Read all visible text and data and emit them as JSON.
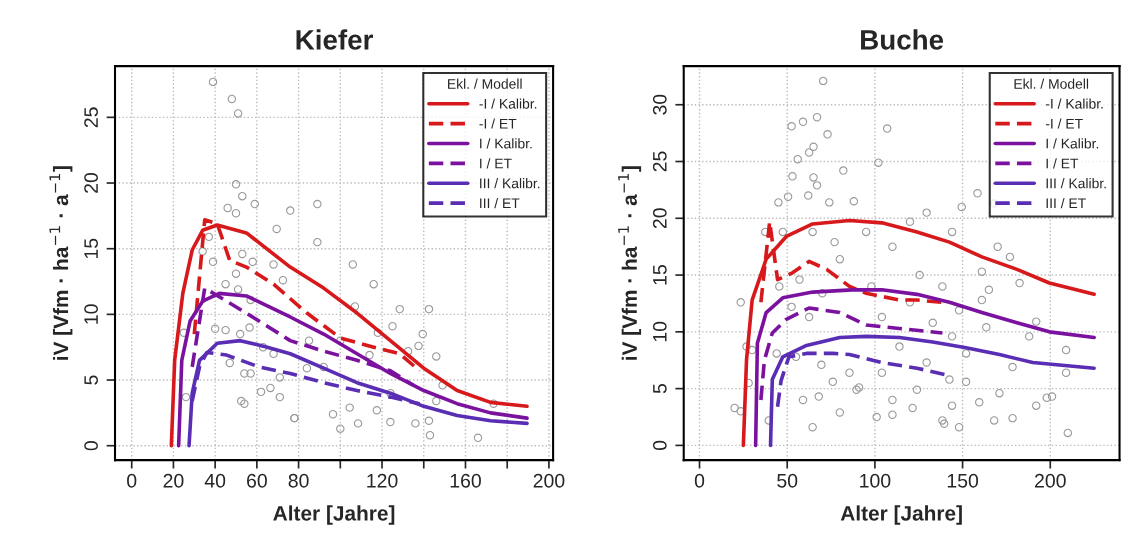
{
  "chart_data": [
    {
      "type": "line",
      "title": "Kiefer",
      "xlabel": "Alter [Jahre]",
      "ylabel": "iV [Vfm · ha$^{−1}$ · a$^{−1}$]",
      "legend_title": "Ekl. / Modell",
      "legend": "top right",
      "grid": true,
      "xlim": [
        -8,
        202
      ],
      "ylim": [
        -1.1,
        28.9
      ],
      "xticks": [
        0,
        20,
        40,
        60,
        80,
        {
          "value": 100,
          "label": null
        },
        120,
        {
          "value": 140,
          "label": null
        },
        160,
        {
          "value": 180,
          "label": null
        },
        200
      ],
      "yticks": [
        0,
        5,
        10,
        15,
        20,
        25
      ],
      "series": [
        {
          "type": "scatter",
          "marker": "circle",
          "color": "#9a9a9a",
          "x": [
            39,
            48,
            51,
            50,
            53,
            59,
            46,
            50,
            76,
            69.5,
            37,
            34,
            53,
            39,
            58,
            68,
            50,
            45,
            72.5,
            51,
            57,
            25,
            40,
            45,
            52,
            56.5,
            63,
            68,
            47,
            54,
            57,
            66.5,
            71,
            62,
            26,
            52.5,
            54,
            71,
            78,
            89,
            89,
            106,
            116,
            107,
            128.5,
            142.5,
            125,
            139.5,
            118,
            100,
            137.5,
            146,
            132.5,
            114,
            92,
            149,
            124,
            104.5,
            96.5,
            117.5,
            124,
            108.5,
            100,
            136,
            142.5,
            143,
            166,
            173.5,
            146,
            78,
            84,
            85
          ],
          "values": [
            27.7,
            26.4,
            25.3,
            19.9,
            19.0,
            18.4,
            18.1,
            17.7,
            17.9,
            16.5,
            15.9,
            14.8,
            14.6,
            14.0,
            14.0,
            13.8,
            13.1,
            12.3,
            12.6,
            11.9,
            11.1,
            8.6,
            8.9,
            8.8,
            8.5,
            9.0,
            7.5,
            7.0,
            6.3,
            5.5,
            5.5,
            4.4,
            5.2,
            4.1,
            3.7,
            3.4,
            3.2,
            3.7,
            2.1,
            18.4,
            15.5,
            13.8,
            12.3,
            10.6,
            10.4,
            10.4,
            9.1,
            8.5,
            8.6,
            8.0,
            7.6,
            6.8,
            7.2,
            6.9,
            6.0,
            4.6,
            4.0,
            2.9,
            2.4,
            2.7,
            1.8,
            1.7,
            1.3,
            1.7,
            1.9,
            0.8,
            0.6,
            3.2,
            3.4,
            2.1,
            5.9,
            8.0
          ]
        },
        {
          "name": "-I / Kalibr.",
          "color": "#d7191c",
          "line_style": "solid",
          "x": [
            19,
            20.6,
            24.5,
            29,
            34,
            41,
            55,
            76,
            92,
            108,
            124,
            140,
            156,
            172,
            189.5
          ],
          "values": [
            0,
            6.5,
            11.6,
            14.9,
            16.4,
            16.8,
            16.2,
            13.6,
            12.0,
            10.1,
            8.0,
            5.9,
            4.2,
            3.3,
            3.0
          ]
        },
        {
          "name": "-I / ET",
          "color": "#d7191c",
          "line_style": "dashed",
          "x": [
            30,
            35,
            41,
            47,
            55,
            68,
            84,
            100,
            116,
            128.5,
            138
          ],
          "values": [
            8.5,
            17.2,
            16.9,
            14.1,
            13.6,
            12.3,
            10.1,
            8.2,
            7.5,
            7.0,
            5.7
          ]
        },
        {
          "name": "I / Kalibr.",
          "color": "#7b129f",
          "line_style": "solid",
          "x": [
            22.5,
            24,
            28,
            34,
            42,
            55,
            76,
            92,
            108,
            124,
            140,
            156,
            172,
            189.5
          ],
          "values": [
            0,
            6.5,
            9.5,
            11.0,
            11.6,
            11.4,
            9.8,
            8.5,
            7.0,
            5.5,
            4.2,
            3.2,
            2.5,
            2.1
          ]
        },
        {
          "name": "I / ET",
          "color": "#7b129f",
          "line_style": "dashed",
          "x": [
            29,
            35,
            45.5,
            61,
            76,
            92,
            108,
            124,
            135
          ],
          "values": [
            6.0,
            12.0,
            11.0,
            9.5,
            8.0,
            7.2,
            6.5,
            5.7,
            4.6
          ]
        },
        {
          "name": "III / Kalibr.",
          "color": "#5a2db5",
          "line_style": "solid",
          "x": [
            27.5,
            29,
            32.5,
            41,
            52,
            65,
            76,
            92,
            108,
            124,
            140,
            156,
            172,
            189.5
          ],
          "values": [
            0,
            4.0,
            6.5,
            7.8,
            8.0,
            7.5,
            7.0,
            5.9,
            4.8,
            4.0,
            3.0,
            2.3,
            1.9,
            1.7
          ]
        },
        {
          "name": "III / ET",
          "color": "#5a2db5",
          "line_style": "dashed",
          "x": [
            29,
            32.5,
            36,
            45.5,
            61,
            76,
            92,
            108,
            124,
            138
          ],
          "values": [
            3.4,
            6.0,
            7.1,
            6.9,
            6.0,
            5.5,
            4.8,
            4.2,
            3.7,
            3.2
          ]
        }
      ]
    },
    {
      "type": "line",
      "title": "Buche",
      "xlabel": "Alter [Jahre]",
      "ylabel": "iV [Vfm · ha$^{−1}$ · a$^{−1}$]",
      "legend_title": "Ekl. / Modell",
      "legend": "top right",
      "grid": true,
      "xlim": [
        -9,
        239.5
      ],
      "ylim": [
        -1.3,
        33.4
      ],
      "xticks": [
        0,
        50,
        100,
        150,
        200
      ],
      "yticks": [
        0,
        5,
        10,
        15,
        20,
        25,
        30
      ],
      "series": [
        {
          "type": "scatter",
          "marker": "circle",
          "color": "#9a9a9a",
          "x": [
            70.5,
            52.5,
            59,
            67,
            73,
            56,
            62.5,
            65,
            53,
            65,
            67,
            82,
            50.5,
            62,
            45,
            74,
            88,
            37.5,
            47.5,
            64.5,
            77,
            23.5,
            26.8,
            30,
            28,
            20,
            23.5,
            39.5,
            64.5,
            80,
            59,
            68,
            76,
            69.5,
            55,
            44,
            85.5,
            89.5,
            52.5,
            62.5,
            70,
            57,
            80,
            45.5,
            107,
            102,
            158.5,
            149.5,
            168,
            129.5,
            120,
            144,
            95,
            170,
            110,
            177,
            161,
            125.5,
            182.5,
            165,
            98,
            138.5,
            120,
            161,
            148,
            104,
            133,
            192,
            163.5,
            188,
            144,
            114,
            152,
            209,
            129.5,
            178.5,
            209,
            104,
            142.5,
            152,
            91,
            124,
            198,
            201,
            171,
            159.5,
            110,
            144,
            192,
            121.5,
            101,
            110,
            168,
            178.5,
            138.5,
            148,
            139.5,
            210
          ],
          "values": [
            32.1,
            28.1,
            28.5,
            28.9,
            27.4,
            25.2,
            25.8,
            26.3,
            23.7,
            23.6,
            22.9,
            24.2,
            21.9,
            22.0,
            21.4,
            21.4,
            21.5,
            18.8,
            18.8,
            18.8,
            17.9,
            12.6,
            8.7,
            8.4,
            5.5,
            3.3,
            3.0,
            2.2,
            1.6,
            2.9,
            4.0,
            4.3,
            5.6,
            7.1,
            7.8,
            8.1,
            6.4,
            4.9,
            12.2,
            11.3,
            13.4,
            14.6,
            16.4,
            14.0,
            27.9,
            24.9,
            22.2,
            21.0,
            21.3,
            20.5,
            19.7,
            18.8,
            18.8,
            17.5,
            17.5,
            16.6,
            15.3,
            15.0,
            14.3,
            13.7,
            14.0,
            14.0,
            12.6,
            12.8,
            11.9,
            11.3,
            10.8,
            10.9,
            10.4,
            9.6,
            9.6,
            8.7,
            8.1,
            8.4,
            7.3,
            6.9,
            6.4,
            6.4,
            5.8,
            5.6,
            5.1,
            4.9,
            4.2,
            4.3,
            4.6,
            3.8,
            4.0,
            3.5,
            3.5,
            3.3,
            2.5,
            2.7,
            2.2,
            2.4,
            2.2,
            1.6,
            1.9,
            1.1
          ]
        },
        {
          "name": "-I / Kalibr.",
          "color": "#d7191c",
          "line_style": "solid",
          "x": [
            25,
            26.8,
            30,
            38,
            49.5,
            64.5,
            85.5,
            104,
            124,
            142.5,
            161,
            181,
            199.5,
            225
          ],
          "values": [
            0,
            7.5,
            12.8,
            16.4,
            18.4,
            19.5,
            19.8,
            19.6,
            18.8,
            17.9,
            16.6,
            15.5,
            14.3,
            13.3
          ]
        },
        {
          "name": "-I / ET",
          "color": "#d7191c",
          "line_style": "dashed",
          "x": [
            35,
            40,
            44.5,
            53,
            62.5,
            72.5,
            85.5,
            95,
            114,
            124,
            138.5
          ],
          "values": [
            12.6,
            19.7,
            14.6,
            15.2,
            16.2,
            15.5,
            14.0,
            13.4,
            12.8,
            12.8,
            12.6
          ]
        },
        {
          "name": "I / Kalibr.",
          "color": "#7b129f",
          "line_style": "solid",
          "x": [
            32,
            33,
            38,
            47.5,
            64.5,
            87,
            104,
            124,
            142.5,
            161,
            181,
            199.5,
            225
          ],
          "values": [
            0,
            9.0,
            11.7,
            13.0,
            13.5,
            13.7,
            13.7,
            13.3,
            12.6,
            11.7,
            10.8,
            10.0,
            9.5
          ]
        },
        {
          "name": "I / ET",
          "color": "#7b129f",
          "line_style": "dashed",
          "x": [
            35,
            37,
            41.5,
            49.5,
            62.5,
            80,
            95,
            114,
            138.5
          ],
          "values": [
            4.0,
            7.5,
            9.9,
            11.1,
            12.1,
            11.7,
            10.6,
            10.3,
            9.9
          ]
        },
        {
          "name": "III / Kalibr.",
          "color": "#5a2db5",
          "line_style": "solid",
          "x": [
            40.5,
            41.5,
            47.5,
            61,
            80,
            95,
            114,
            133,
            152,
            171,
            190,
            225
          ],
          "values": [
            0,
            5.8,
            7.8,
            8.8,
            9.5,
            9.6,
            9.5,
            9.1,
            8.6,
            8.0,
            7.3,
            6.8
          ]
        },
        {
          "name": "III / ET",
          "color": "#5a2db5",
          "line_style": "dashed",
          "x": [
            44.5,
            46.5,
            51,
            61,
            76,
            85.5,
            104,
            124,
            141
          ],
          "values": [
            3.4,
            5.7,
            7.8,
            8.1,
            8.1,
            8.0,
            7.3,
            6.8,
            6.2
          ]
        }
      ]
    }
  ]
}
